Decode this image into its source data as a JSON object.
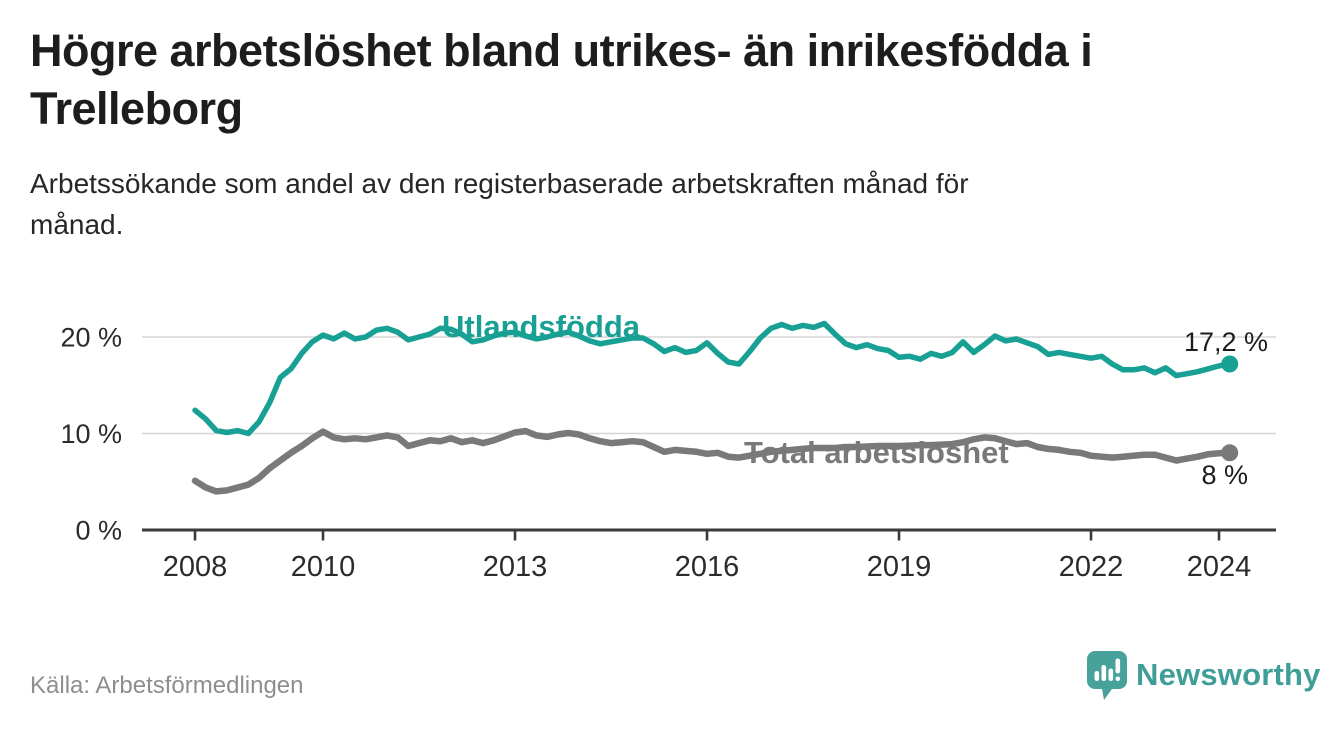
{
  "header": {
    "title_lines": [
      "Högre arbetslöshet bland utrikes- än inrikesfödda i",
      "Trelleborg"
    ],
    "subtitle_lines": [
      "Arbetssökande som andel av den registerbaserade arbetskraften månad för",
      "månad."
    ]
  },
  "footer": {
    "source": "Källa: Arbetsförmedlingen",
    "brand": "Newsworthy",
    "brand_color": "#3f9e98",
    "logo_color": "#47a29c"
  },
  "chart_data": {
    "type": "line",
    "title": "Högre arbetslöshet bland utrikes- än inrikesfödda i Trelleborg",
    "subtitle": "Arbetssökande som andel av den registerbaserade arbetskraften månad för månad.",
    "x_unit": "year-month",
    "x_start_year": 2008,
    "months_per_point": 2,
    "x_end_label": "2024",
    "ylim": [
      0,
      23
    ],
    "grid": "horizontal",
    "legend_position": "inline-labels",
    "x_ticks": [
      {
        "label": "2008",
        "year": 2008
      },
      {
        "label": "2010",
        "year": 2010
      },
      {
        "label": "2013",
        "year": 2013
      },
      {
        "label": "2016",
        "year": 2016
      },
      {
        "label": "2019",
        "year": 2019
      },
      {
        "label": "2022",
        "year": 2022
      },
      {
        "label": "2024",
        "year": 2024
      }
    ],
    "y_ticks": [
      {
        "label": "20 %",
        "value": 20
      },
      {
        "label": "10 %",
        "value": 10
      },
      {
        "label": "0 %",
        "value": 0
      }
    ],
    "series": [
      {
        "name": "Utlandsfödda",
        "color": "#18a094",
        "stroke_width": 5.5,
        "end_label": "17,2 %",
        "values": [
          12.4,
          11.5,
          10.3,
          10.1,
          10.3,
          10.0,
          11.2,
          13.2,
          15.8,
          16.7,
          18.3,
          19.5,
          20.2,
          19.8,
          20.4,
          19.8,
          20.0,
          20.7,
          20.9,
          20.5,
          19.7,
          20.0,
          20.3,
          20.9,
          20.8,
          20.3,
          19.5,
          19.7,
          20.1,
          20.4,
          20.5,
          20.1,
          19.8,
          20.0,
          20.3,
          20.5,
          20.1,
          19.6,
          19.3,
          19.5,
          19.7,
          19.9,
          19.9,
          19.3,
          18.5,
          18.9,
          18.4,
          18.6,
          19.4,
          18.3,
          17.4,
          17.2,
          18.5,
          19.9,
          20.9,
          21.3,
          20.9,
          21.2,
          21.0,
          21.4,
          20.3,
          19.3,
          18.9,
          19.2,
          18.8,
          18.6,
          17.9,
          18.0,
          17.7,
          18.3,
          18.0,
          18.4,
          19.5,
          18.4,
          19.2,
          20.1,
          19.6,
          19.8,
          19.4,
          19.0,
          18.2,
          18.4,
          18.2,
          18.0,
          17.8,
          18.0,
          17.2,
          16.6,
          16.6,
          16.8,
          16.3,
          16.8,
          16.0,
          16.2,
          16.4,
          16.7,
          17.0,
          17.2
        ]
      },
      {
        "name": "Total arbetslöshet",
        "color": "#797979",
        "stroke_width": 6.5,
        "end_label": "8 %",
        "values": [
          5.1,
          4.4,
          4.0,
          4.1,
          4.4,
          4.7,
          5.4,
          6.4,
          7.2,
          8.0,
          8.7,
          9.5,
          10.2,
          9.6,
          9.4,
          9.5,
          9.4,
          9.6,
          9.8,
          9.6,
          8.7,
          9.0,
          9.3,
          9.2,
          9.5,
          9.1,
          9.3,
          9.0,
          9.3,
          9.7,
          10.1,
          10.25,
          9.8,
          9.65,
          9.9,
          10.05,
          9.9,
          9.5,
          9.2,
          9.0,
          9.1,
          9.2,
          9.1,
          8.6,
          8.1,
          8.3,
          8.2,
          8.1,
          7.9,
          8.0,
          7.6,
          7.5,
          7.7,
          7.9,
          8.1,
          8.2,
          8.3,
          8.4,
          8.5,
          8.5,
          8.5,
          8.6,
          8.6,
          8.65,
          8.7,
          8.7,
          8.7,
          8.75,
          8.8,
          8.8,
          8.85,
          8.9,
          9.1,
          9.4,
          9.6,
          9.5,
          9.2,
          8.9,
          9.0,
          8.6,
          8.4,
          8.3,
          8.1,
          8.0,
          7.7,
          7.6,
          7.5,
          7.6,
          7.7,
          7.8,
          7.8,
          7.5,
          7.2,
          7.4,
          7.6,
          7.85,
          7.95,
          8.0
        ]
      }
    ]
  }
}
